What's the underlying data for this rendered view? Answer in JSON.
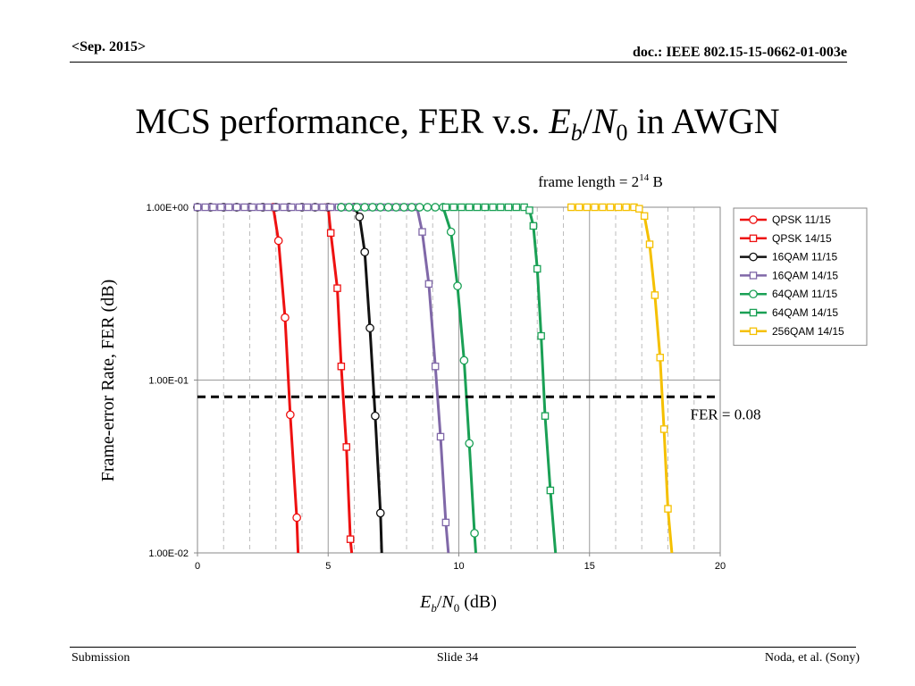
{
  "header": {
    "date": "<Sep. 2015>",
    "doc": "doc.: IEEE 802.15-15-0662-01-003e"
  },
  "title": {
    "pre": "MCS performance, FER v.s. ",
    "e": "E",
    "b": "b",
    "slash": "/",
    "n": "N",
    "zero": "0",
    "post": " in AWGN"
  },
  "footer": {
    "left": "Submission",
    "center": "Slide 34",
    "right": "Noda, et al. (Sony)"
  },
  "chart_data": {
    "type": "line",
    "subtitle": "frame length = 2",
    "subtitle_exp": "14",
    "subtitle_tail": " B",
    "xlabel": {
      "e": "E",
      "b": "b",
      "slash": "/",
      "n": "N",
      "zero": "0",
      "unit": " (dB)"
    },
    "ylabel": "Frame-error Rate, FER (dB)",
    "xlim": [
      0,
      20
    ],
    "ylim": [
      0.01,
      1
    ],
    "yscale": "log",
    "x_ticks": [
      0,
      5,
      10,
      15,
      20
    ],
    "y_ticks": [
      {
        "v": 1,
        "label": "1.00E+00"
      },
      {
        "v": 0.1,
        "label": "1.00E-01"
      },
      {
        "v": 0.01,
        "label": "1.00E-02"
      }
    ],
    "grid": true,
    "legend_position": "top-right",
    "threshold": {
      "y": 0.08,
      "label": "FER = 0.08",
      "color": "#000000"
    },
    "series": [
      {
        "name": "QPSK 11/15",
        "color": "#ee1111",
        "marker": "circle",
        "points": [
          [
            2.9,
            1.0
          ],
          [
            3.1,
            0.64
          ],
          [
            3.35,
            0.23
          ],
          [
            3.55,
            0.063
          ],
          [
            3.8,
            0.016
          ],
          [
            3.85,
            0.01
          ]
        ]
      },
      {
        "name": "QPSK 14/15",
        "color": "#ee1111",
        "marker": "square",
        "points": [
          [
            5.0,
            1.0
          ],
          [
            5.1,
            0.71
          ],
          [
            5.35,
            0.34
          ],
          [
            5.5,
            0.12
          ],
          [
            5.7,
            0.041
          ],
          [
            5.85,
            0.012
          ],
          [
            5.9,
            0.01
          ]
        ]
      },
      {
        "name": "16QAM 11/15",
        "color": "#111111",
        "marker": "circle",
        "points": [
          [
            0.0,
            1.0
          ],
          [
            0.5,
            1.0
          ],
          [
            1.0,
            1.0
          ],
          [
            1.5,
            1.0
          ],
          [
            2.0,
            1.0
          ],
          [
            2.5,
            1.0
          ],
          [
            3.0,
            1.0
          ],
          [
            3.5,
            1.0
          ],
          [
            4.0,
            1.0
          ],
          [
            4.5,
            1.0
          ],
          [
            5.0,
            1.0
          ],
          [
            5.5,
            1.0
          ],
          [
            6.0,
            1.0
          ],
          [
            6.2,
            0.88
          ],
          [
            6.4,
            0.55
          ],
          [
            6.6,
            0.2
          ],
          [
            6.8,
            0.062
          ],
          [
            7.0,
            0.017
          ],
          [
            7.05,
            0.01
          ]
        ]
      },
      {
        "name": "16QAM 14/15",
        "color": "#8068a8",
        "marker": "square",
        "points": [
          [
            0.0,
            1.0
          ],
          [
            0.3,
            1.0
          ],
          [
            0.6,
            1.0
          ],
          [
            0.9,
            1.0
          ],
          [
            1.2,
            1.0
          ],
          [
            1.5,
            1.0
          ],
          [
            1.8,
            1.0
          ],
          [
            2.1,
            1.0
          ],
          [
            2.4,
            1.0
          ],
          [
            2.7,
            1.0
          ],
          [
            3.0,
            1.0
          ],
          [
            3.3,
            1.0
          ],
          [
            3.6,
            1.0
          ],
          [
            3.9,
            1.0
          ],
          [
            4.2,
            1.0
          ],
          [
            4.5,
            1.0
          ],
          [
            4.8,
            1.0
          ],
          [
            5.1,
            1.0
          ],
          [
            5.4,
            1.0
          ],
          [
            5.7,
            1.0
          ],
          [
            6.0,
            1.0
          ],
          [
            6.3,
            1.0
          ],
          [
            6.6,
            1.0
          ],
          [
            6.9,
            1.0
          ],
          [
            7.2,
            1.0
          ],
          [
            7.5,
            1.0
          ],
          [
            7.8,
            1.0
          ],
          [
            8.1,
            1.0
          ],
          [
            8.4,
            1.0
          ],
          [
            8.6,
            0.72
          ],
          [
            8.85,
            0.36
          ],
          [
            9.1,
            0.12
          ],
          [
            9.3,
            0.047
          ],
          [
            9.5,
            0.015
          ],
          [
            9.6,
            0.01
          ]
        ]
      },
      {
        "name": "64QAM 11/15",
        "color": "#1aa055",
        "marker": "circle",
        "points": [
          [
            5.5,
            1.0
          ],
          [
            5.8,
            1.0
          ],
          [
            6.1,
            1.0
          ],
          [
            6.4,
            1.0
          ],
          [
            6.7,
            1.0
          ],
          [
            7.0,
            1.0
          ],
          [
            7.3,
            1.0
          ],
          [
            7.6,
            1.0
          ],
          [
            7.9,
            1.0
          ],
          [
            8.2,
            1.0
          ],
          [
            8.5,
            1.0
          ],
          [
            8.8,
            1.0
          ],
          [
            9.1,
            1.0
          ],
          [
            9.4,
            1.0
          ],
          [
            9.7,
            0.72
          ],
          [
            9.95,
            0.35
          ],
          [
            10.2,
            0.13
          ],
          [
            10.4,
            0.043
          ],
          [
            10.6,
            0.013
          ],
          [
            10.65,
            0.01
          ]
        ]
      },
      {
        "name": "64QAM 14/15",
        "color": "#1aa055",
        "marker": "square",
        "points": [
          [
            9.5,
            1.0
          ],
          [
            9.8,
            1.0
          ],
          [
            10.1,
            1.0
          ],
          [
            10.4,
            1.0
          ],
          [
            10.7,
            1.0
          ],
          [
            11.0,
            1.0
          ],
          [
            11.3,
            1.0
          ],
          [
            11.6,
            1.0
          ],
          [
            11.9,
            1.0
          ],
          [
            12.2,
            1.0
          ],
          [
            12.5,
            1.0
          ],
          [
            12.7,
            0.96
          ],
          [
            12.85,
            0.78
          ],
          [
            13.0,
            0.44
          ],
          [
            13.15,
            0.18
          ],
          [
            13.3,
            0.062
          ],
          [
            13.5,
            0.023
          ],
          [
            13.7,
            0.01
          ]
        ]
      },
      {
        "name": "256QAM 14/15",
        "color": "#f5c000",
        "marker": "square",
        "points": [
          [
            14.3,
            1.0
          ],
          [
            14.6,
            1.0
          ],
          [
            14.9,
            1.0
          ],
          [
            15.2,
            1.0
          ],
          [
            15.5,
            1.0
          ],
          [
            15.8,
            1.0
          ],
          [
            16.1,
            1.0
          ],
          [
            16.4,
            1.0
          ],
          [
            16.7,
            1.0
          ],
          [
            16.9,
            0.98
          ],
          [
            17.1,
            0.89
          ],
          [
            17.3,
            0.61
          ],
          [
            17.5,
            0.31
          ],
          [
            17.7,
            0.135
          ],
          [
            17.85,
            0.052
          ],
          [
            18.0,
            0.018
          ],
          [
            18.15,
            0.01
          ]
        ]
      }
    ]
  }
}
